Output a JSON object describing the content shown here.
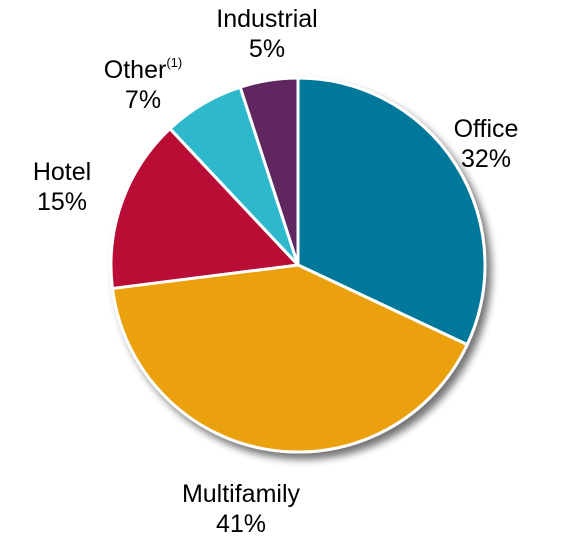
{
  "chart_data": {
    "type": "pie",
    "title": "",
    "slices": [
      {
        "label": "Office",
        "footnote": "",
        "value": 32,
        "value_label": "32%",
        "color": "#00789A"
      },
      {
        "label": "Multifamily",
        "footnote": "",
        "value": 41,
        "value_label": "41%",
        "color": "#EBA00A"
      },
      {
        "label": "Hotel",
        "footnote": "",
        "value": 15,
        "value_label": "15%",
        "color": "#BA1034"
      },
      {
        "label": "Other",
        "footnote": "(1)",
        "value": 7,
        "value_label": "7%",
        "color": "#2EB8CB"
      },
      {
        "label": "Industrial",
        "footnote": "",
        "value": 5,
        "value_label": "5%",
        "color": "#5E2861"
      }
    ],
    "start": "top, clockwise",
    "legend": "none (labels outside slices)"
  }
}
